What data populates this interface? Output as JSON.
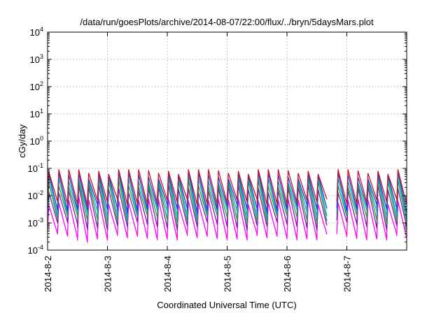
{
  "chart_data": {
    "type": "line",
    "title": "/data/run/goesPlots/archive/2014-08-07/22:00/flux/../bryn/5daysMars.plot",
    "xlabel": "Coordinated Universal Time (UTC)",
    "ylabel": "cGy/day",
    "y_scale": "log",
    "ylim": [
      0.0001,
      10000
    ],
    "xlim": [
      "2014-8-2",
      "2014-8-8"
    ],
    "grid": true,
    "legend": "none",
    "y_ticks": [
      {
        "mant": "10",
        "exp": "-4",
        "value": 0.0001
      },
      {
        "mant": "10",
        "exp": "-3",
        "value": 0.001
      },
      {
        "mant": "10",
        "exp": "-2",
        "value": 0.01
      },
      {
        "mant": "10",
        "exp": "-1",
        "value": 0.1
      },
      {
        "mant": "10",
        "exp": "0",
        "value": 1
      },
      {
        "mant": "10",
        "exp": "1",
        "value": 10
      },
      {
        "mant": "10",
        "exp": "2",
        "value": 100
      },
      {
        "mant": "10",
        "exp": "3",
        "value": 1000
      },
      {
        "mant": "10",
        "exp": "4",
        "value": 10000
      }
    ],
    "x_ticks": [
      "2014-8-2",
      "2014-8-3",
      "2014-8-4",
      "2014-8-5",
      "2014-8-6",
      "2014-8-7"
    ],
    "series_pattern": {
      "description_values": "sawtooth oscillations, roughly 6 cycles per day",
      "cycles_per_day": 6,
      "colors": [
        "#c8102e",
        "#1a3fd6",
        "#00b4b4",
        "#2a9d4a",
        "#7a1fa2",
        "#ff00ff"
      ],
      "peak_values": [
        0.075,
        0.055,
        0.04,
        0.028,
        0.017,
        0.006
      ],
      "trough_values": [
        0.006,
        0.0035,
        0.0022,
        0.0014,
        0.0008,
        0.0003
      ]
    }
  }
}
